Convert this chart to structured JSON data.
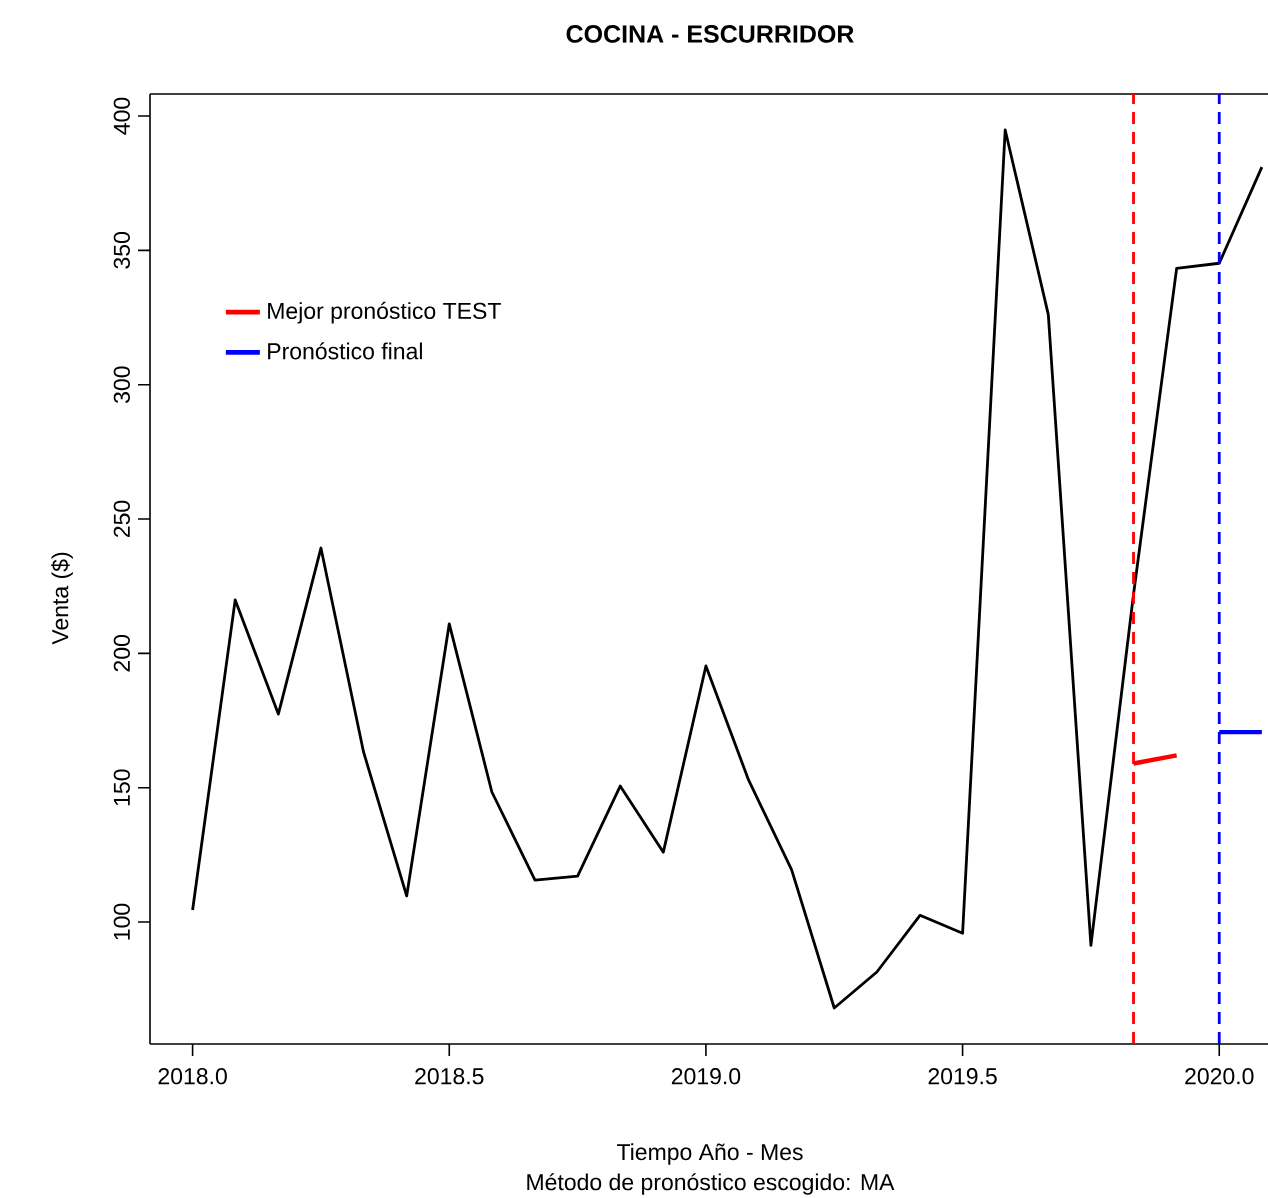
{
  "chart_data": {
    "type": "line",
    "title": "COCINA - ESCURRIDOR",
    "xlabel": "Tiempo Año - Mes",
    "ylabel": "Venta ($)",
    "annotations": [
      "Método de pronóstico escogido: MA"
    ],
    "xlim": [
      2017.917,
      2020.095
    ],
    "ylim": [
      54.6,
      408.2
    ],
    "xticks": [
      {
        "value": 2018,
        "label": "2018.0"
      },
      {
        "value": 2018.5,
        "label": "2018.5"
      },
      {
        "value": 2019,
        "label": "2019.0"
      },
      {
        "value": 2019.5,
        "label": "2019.5"
      },
      {
        "value": 2020,
        "label": "2020.0"
      }
    ],
    "yticks": [
      100,
      150,
      200,
      250,
      300,
      350,
      400
    ],
    "legend": "top left",
    "series": [
      {
        "color": "#000000",
        "x": [
          2018.0,
          2018.083,
          2018.167,
          2018.25,
          2018.333,
          2018.417,
          2018.5,
          2018.583,
          2018.667,
          2018.75,
          2018.833,
          2018.917,
          2019.0,
          2019.083,
          2019.167,
          2019.25,
          2019.333,
          2019.417,
          2019.5,
          2019.583,
          2019.667,
          2019.75,
          2019.833,
          2019.917,
          2020.0,
          2020.083
        ],
        "values": [
          104.5,
          219.9,
          177.4,
          239.2,
          163.3,
          109.7,
          211,
          148.4,
          115.6,
          117.1,
          150.6,
          126,
          195.3,
          152.9,
          119.4,
          68,
          81.4,
          102.5,
          95.8,
          394.8,
          326.1,
          91.3,
          222,
          343.3,
          345.2,
          381
        ]
      },
      {
        "name": "Mejor pronóstico TEST",
        "color": "#ff0000",
        "x": [
          2019.833,
          2019.917
        ],
        "values": [
          159,
          162
        ]
      },
      {
        "name": "Pronóstico final",
        "color": "#0000ff",
        "x": [
          2020.0,
          2020.083
        ],
        "values": [
          170.7,
          170.7
        ]
      }
    ],
    "ref_lines": [
      {
        "axis": "x",
        "value": 2019.833,
        "color": "#ff0000",
        "line_style": "dashed"
      },
      {
        "axis": "x",
        "value": 2020.0,
        "color": "#0000ff",
        "line_style": "dashed"
      }
    ]
  }
}
